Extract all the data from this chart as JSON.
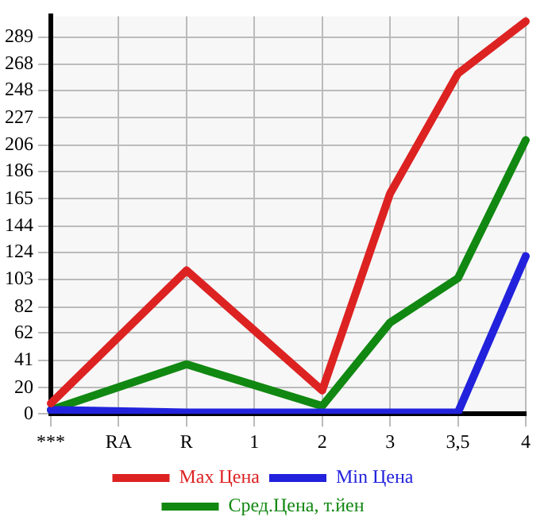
{
  "chart_data": {
    "type": "line",
    "categories": [
      "***",
      "RA",
      "R",
      "1",
      "2",
      "3",
      "3,5",
      "4"
    ],
    "series": [
      {
        "name": "Max Цена",
        "color": "#dd2222",
        "values": [
          8,
          null,
          110,
          null,
          18,
          169,
          261,
          301
        ]
      },
      {
        "name": "Min Цена",
        "color": "#2222dd",
        "values": [
          3,
          null,
          1,
          null,
          1,
          1,
          1,
          121
        ]
      },
      {
        "name": "Сред.Цена, т.йен",
        "color": "#118811",
        "values": [
          3,
          null,
          38,
          null,
          6,
          70,
          104,
          210
        ]
      }
    ],
    "ylim": [
      0,
      305
    ],
    "yticks": [
      0,
      20,
      41,
      62,
      82,
      103,
      124,
      144,
      165,
      186,
      206,
      227,
      248,
      268,
      289
    ],
    "grid": true,
    "legend": "bottom",
    "marker": "none",
    "line_style": "solid"
  }
}
